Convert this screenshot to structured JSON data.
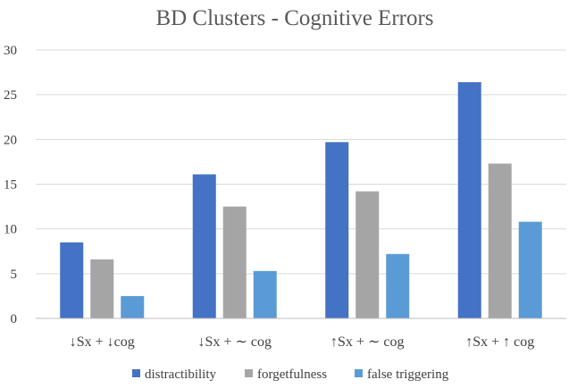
{
  "chart_data": {
    "type": "bar",
    "title": "BD Clusters - Cognitive Errors",
    "categories": [
      "↓Sx + ↓cog",
      "↓Sx + ∼ cog",
      "↑Sx + ∼ cog",
      "↑Sx + ↑ cog"
    ],
    "series": [
      {
        "name": "distractibility",
        "color": "#4472c4",
        "values": [
          8.5,
          16.1,
          19.7,
          26.4
        ]
      },
      {
        "name": "forgetfulness",
        "color": "#a5a5a5",
        "values": [
          6.6,
          12.5,
          14.2,
          17.3
        ]
      },
      {
        "name": "false triggering",
        "color": "#5b9bd5",
        "values": [
          2.5,
          5.3,
          7.2,
          10.8
        ]
      }
    ],
    "ylim": [
      0,
      30
    ],
    "yticks": [
      0,
      5,
      10,
      15,
      20,
      25,
      30
    ],
    "grid": true,
    "legend": "bottom"
  }
}
